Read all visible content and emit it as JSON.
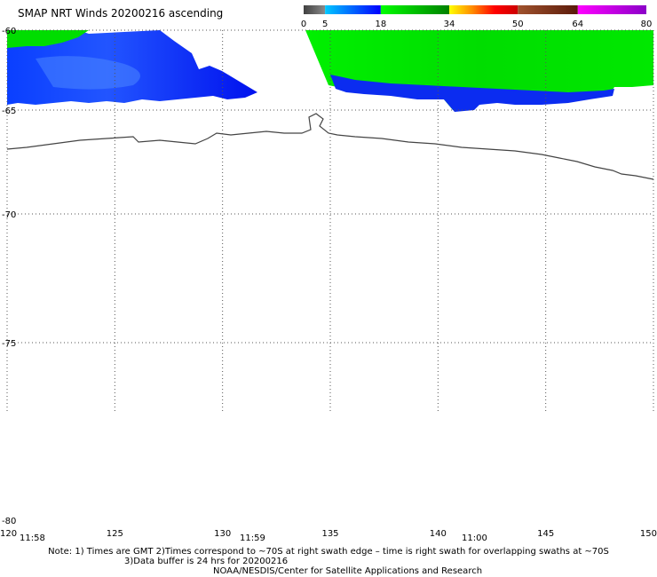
{
  "title": "SMAP NRT Winds 20200216 ascending",
  "colorbar": {
    "labels": [
      "0",
      "5",
      "18",
      "34",
      "50",
      "64",
      "80"
    ],
    "segments": [
      {
        "from": 0,
        "to": 5,
        "colors": [
          "#404040",
          "#8a8a8a"
        ]
      },
      {
        "from": 5,
        "to": 18,
        "colors": [
          "#00c8ff",
          "#0000ff"
        ]
      },
      {
        "from": 18,
        "to": 34,
        "colors": [
          "#00ff00",
          "#008000"
        ]
      },
      {
        "from": 34,
        "to": 50,
        "colors": [
          "#ffff00",
          "#ff8c00",
          "#ff0000",
          "#cc0000"
        ]
      },
      {
        "from": 50,
        "to": 64,
        "colors": [
          "#a0522d",
          "#5a1a0a"
        ]
      },
      {
        "from": 64,
        "to": 80,
        "colors": [
          "#ff00ff",
          "#8b00c8"
        ]
      }
    ]
  },
  "axes": {
    "lat_labels": [
      "-60",
      "-65",
      "-70",
      "-75",
      "-80"
    ],
    "lon_labels": [
      "120",
      "125",
      "130",
      "135",
      "140",
      "145",
      "150"
    ],
    "time_labels": [
      "11:58",
      "11:59",
      "11:00"
    ]
  },
  "notes": {
    "line1": "Note: 1) Times are GMT 2)Times correspond to ~70S at right swath edge – time is right swath for overlapping swaths at ~70S",
    "line2": "3)Data buffer is 24 hrs for 20200216",
    "line3": "NOAA/NESDIS/Center for Satellite Applications and Research"
  },
  "colors": {
    "swath_blue": "#0033ee",
    "swath_green": "#00e600",
    "swath_light_blue": "#2a6bff",
    "coastline": "#333333",
    "grid": "#555555"
  }
}
